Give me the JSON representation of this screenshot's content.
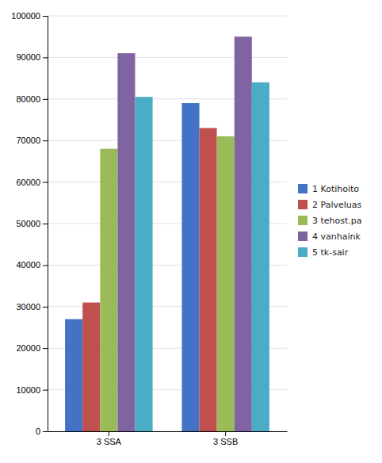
{
  "chart_data": {
    "type": "bar",
    "categories": [
      "3 SSA",
      "3 SSB"
    ],
    "series": [
      {
        "name": "1 Kotihoito",
        "color": "#4472C4",
        "values": [
          27000,
          79000
        ]
      },
      {
        "name": "2 Palveluas",
        "color": "#C0504D",
        "values": [
          31000,
          73000
        ]
      },
      {
        "name": "3 tehost.pa",
        "color": "#9BBB59",
        "values": [
          68000,
          71000
        ]
      },
      {
        "name": "4 vanhaink",
        "color": "#8064A2",
        "values": [
          91000,
          95000
        ]
      },
      {
        "name": "5 tk-sair",
        "color": "#4BACC6",
        "values": [
          80500,
          84000
        ]
      }
    ],
    "ylim": [
      0,
      100000
    ],
    "yticks": [
      0,
      10000,
      20000,
      30000,
      40000,
      50000,
      60000,
      70000,
      80000,
      90000,
      100000
    ],
    "grid": true,
    "legend": "right"
  }
}
